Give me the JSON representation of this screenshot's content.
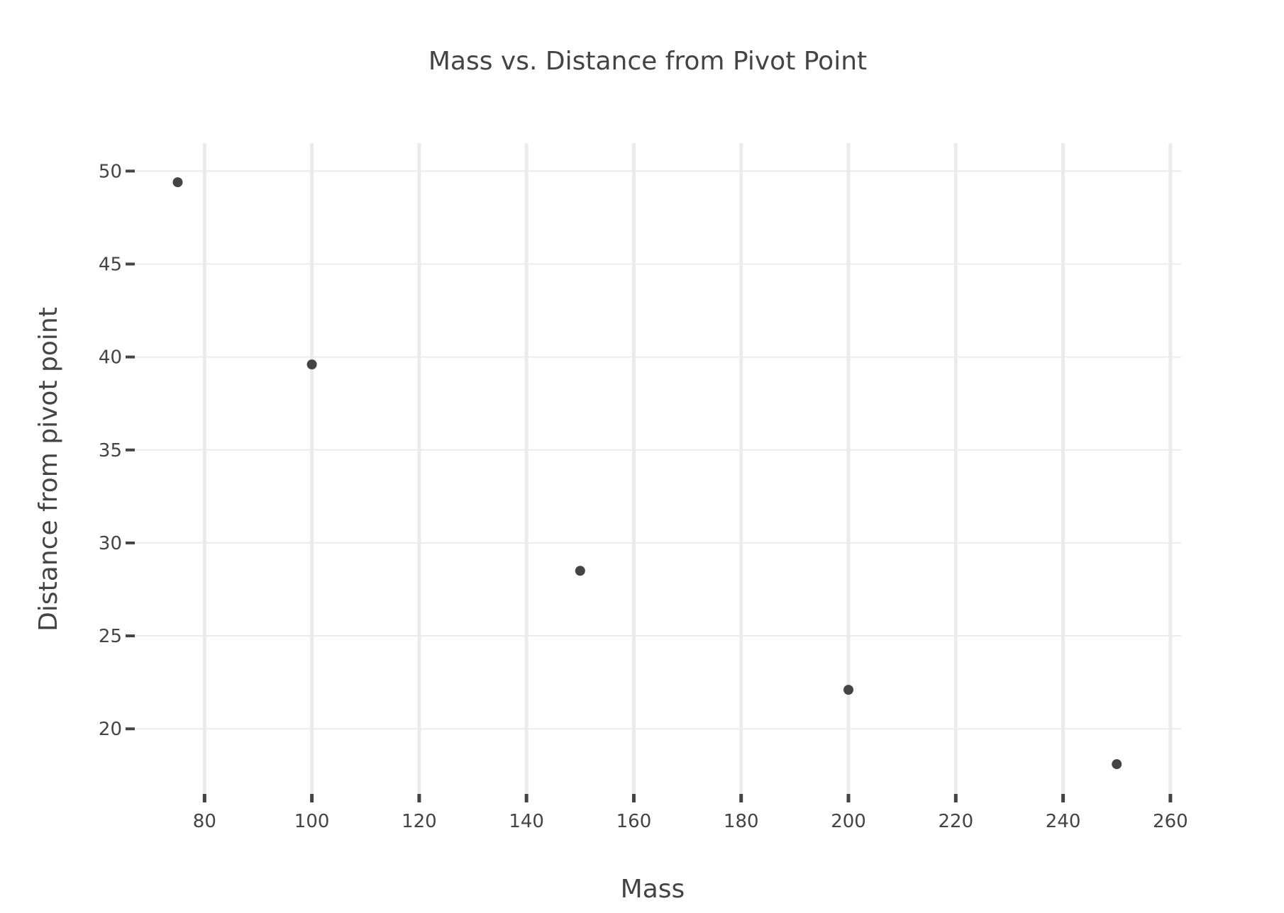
{
  "chart_data": {
    "type": "scatter",
    "title": "Mass vs. Distance from Pivot Point",
    "xlabel": "Mass",
    "ylabel": "Distance from pivot point",
    "xlim": [
      67,
      262
    ],
    "ylim": [
      16.5,
      51.5
    ],
    "xticks": [
      80,
      100,
      120,
      140,
      160,
      180,
      200,
      220,
      240,
      260
    ],
    "yticks": [
      20,
      25,
      30,
      35,
      40,
      45,
      50
    ],
    "grid": true,
    "legend": "none",
    "marker_color": "#444444",
    "series": [
      {
        "x": [
          75,
          100,
          150,
          200,
          250
        ],
        "y": [
          49.4,
          39.6,
          28.5,
          22.1,
          18.1
        ]
      }
    ]
  }
}
